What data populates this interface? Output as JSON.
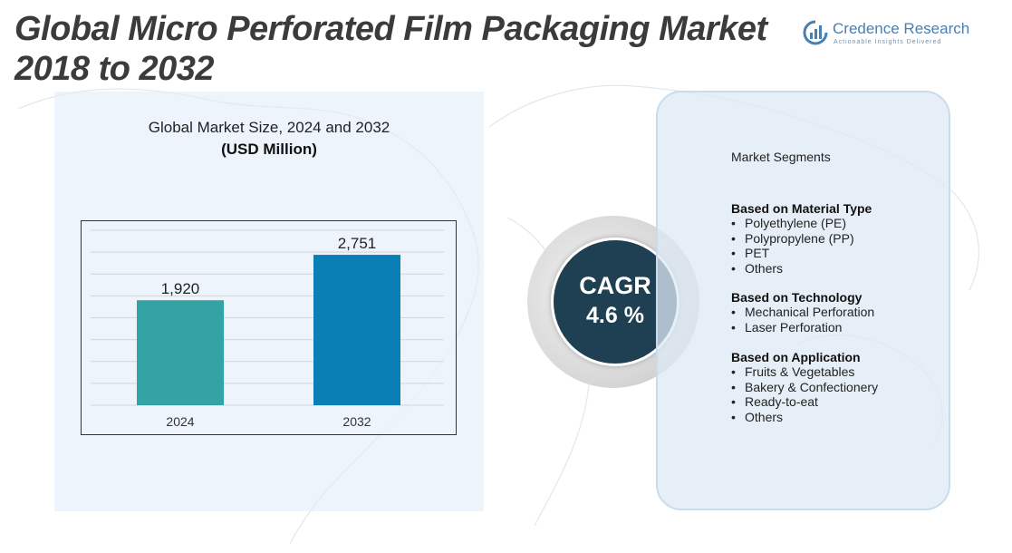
{
  "title": "Global Micro Perforated Film Packaging Market 2018 to 2032",
  "logo": {
    "name": "Credence Research",
    "tagline": "Actionable Insights Delivered"
  },
  "chart_header": {
    "title": "Global Market Size, 2024 and 2032",
    "subtitle": "(USD Million)"
  },
  "chart_data": {
    "type": "bar",
    "categories": [
      "2024",
      "2032"
    ],
    "values": [
      1920,
      2751
    ],
    "value_labels": [
      "1,920",
      "2,751"
    ],
    "colors": [
      "#33a3a3",
      "#0a7fb5"
    ],
    "ylim": [
      0,
      3200
    ],
    "grid": true,
    "xlabel": "",
    "ylabel": ""
  },
  "cagr": {
    "label": "CAGR",
    "value": "4.6 %"
  },
  "segments": {
    "title": "Market Segments",
    "groups": [
      {
        "heading": "Based on Material Type",
        "items": [
          "Polyethylene (PE)",
          "Polypropylene (PP)",
          "PET",
          "Others"
        ]
      },
      {
        "heading": "Based on Technology",
        "items": [
          "Mechanical Perforation",
          "Laser Perforation"
        ]
      },
      {
        "heading": "Based on Application",
        "items": [
          "Fruits & Vegetables",
          "Bakery & Confectionery",
          "Ready-to-eat",
          "Others"
        ]
      }
    ]
  },
  "colors": {
    "title": "#3b3b3b",
    "cagr_circle": "#1f3f52",
    "panel": "#ddeaf5",
    "logo": "#4a7fb0"
  }
}
